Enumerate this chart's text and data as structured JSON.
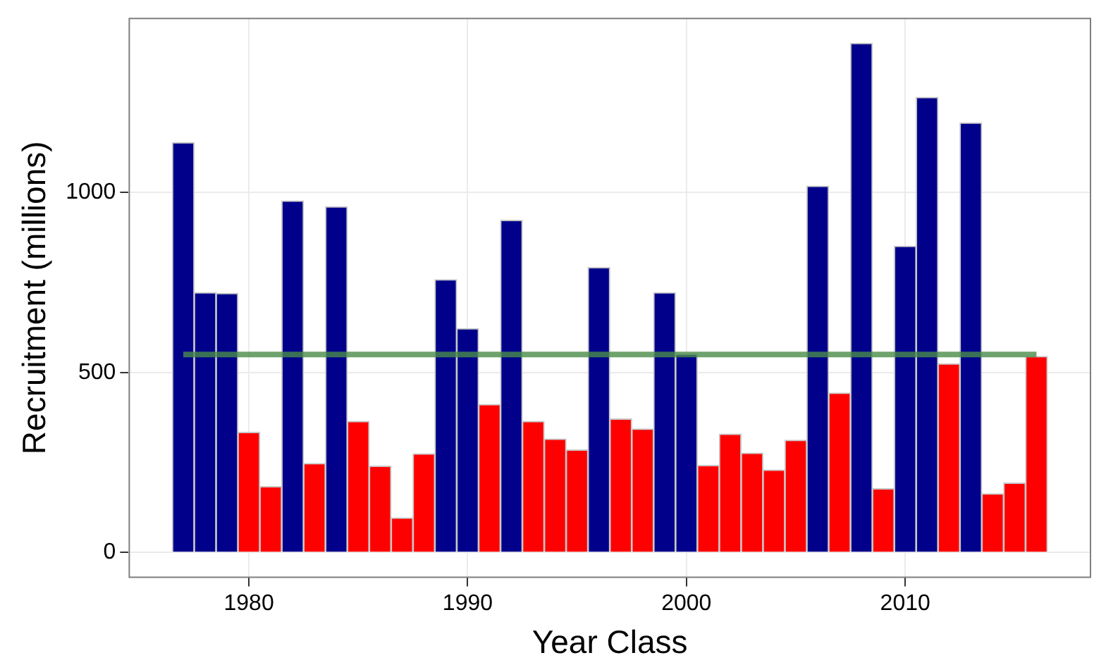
{
  "chart_data": {
    "type": "bar",
    "xlabel": "Year Class",
    "ylabel": "Recruitment (millions)",
    "x": [
      1977,
      1978,
      1979,
      1980,
      1981,
      1982,
      1983,
      1984,
      1985,
      1986,
      1987,
      1988,
      1989,
      1990,
      1991,
      1992,
      1993,
      1994,
      1995,
      1996,
      1997,
      1998,
      1999,
      2000,
      2001,
      2002,
      2003,
      2004,
      2005,
      2006,
      2007,
      2008,
      2009,
      2010,
      2011,
      2012,
      2013,
      2014,
      2015,
      2016
    ],
    "values": [
      1139,
      722,
      720,
      334,
      183,
      977,
      247,
      961,
      364,
      240,
      96,
      274,
      758,
      622,
      411,
      923,
      364,
      315,
      285,
      792,
      371,
      343,
      722,
      551,
      242,
      329,
      276,
      229,
      312,
      1018,
      443,
      1415,
      177,
      851,
      1265,
      524,
      1194,
      163,
      193,
      545
    ],
    "colors": [
      "#00008b",
      "#00008b",
      "#00008b",
      "#ff0000",
      "#ff0000",
      "#00008b",
      "#ff0000",
      "#00008b",
      "#ff0000",
      "#ff0000",
      "#ff0000",
      "#ff0000",
      "#00008b",
      "#00008b",
      "#ff0000",
      "#00008b",
      "#ff0000",
      "#ff0000",
      "#ff0000",
      "#00008b",
      "#ff0000",
      "#ff0000",
      "#00008b",
      "#00008b",
      "#ff0000",
      "#ff0000",
      "#ff0000",
      "#ff0000",
      "#ff0000",
      "#00008b",
      "#ff0000",
      "#00008b",
      "#ff0000",
      "#00008b",
      "#00008b",
      "#ff0000",
      "#00008b",
      "#ff0000",
      "#ff0000",
      "#ff0000"
    ],
    "xlim": [
      1974.5,
      2018.5
    ],
    "xticks": [
      1980,
      1990,
      2000,
      2010
    ],
    "ylim": [
      -71,
      1486
    ],
    "yticks": [
      0,
      500,
      1000
    ],
    "ref_lines": [
      {
        "axis": "y",
        "value": 550,
        "color": "#4a8c4a"
      }
    ],
    "grid": true,
    "legend": false
  }
}
